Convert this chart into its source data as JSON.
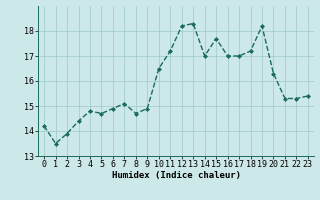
{
  "x": [
    0,
    1,
    2,
    3,
    4,
    5,
    6,
    7,
    8,
    9,
    10,
    11,
    12,
    13,
    14,
    15,
    16,
    17,
    18,
    19,
    20,
    21,
    22,
    23
  ],
  "y": [
    14.2,
    13.5,
    13.9,
    14.4,
    14.8,
    14.7,
    14.9,
    15.1,
    14.7,
    14.9,
    16.5,
    17.2,
    18.2,
    18.3,
    17.0,
    17.7,
    17.0,
    17.0,
    17.2,
    18.2,
    16.3,
    15.3,
    15.3,
    15.4
  ],
  "line_color": "#1a6b5a",
  "marker": "D",
  "marker_size": 2.0,
  "line_width": 1.0,
  "bg_color": "#cde8e8",
  "grid_color": "#9ec8c8",
  "xlabel": "Humidex (Indice chaleur)",
  "ylim": [
    13,
    19
  ],
  "yticks": [
    13,
    14,
    15,
    16,
    17,
    18
  ],
  "xticks": [
    0,
    1,
    2,
    3,
    4,
    5,
    6,
    7,
    8,
    9,
    10,
    11,
    12,
    13,
    14,
    15,
    16,
    17,
    18,
    19,
    20,
    21,
    22,
    23
  ],
  "xlabel_fontsize": 6.5,
  "tick_fontsize": 6.0
}
